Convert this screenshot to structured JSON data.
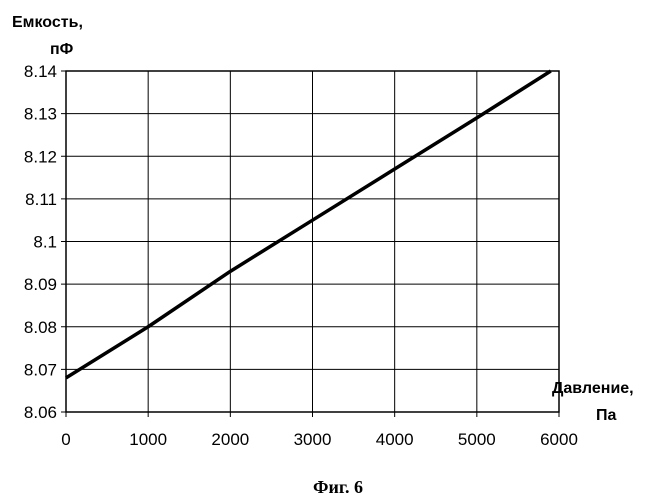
{
  "chart_data": {
    "type": "line",
    "ylabel_line1": "Емкость,",
    "ylabel_line2": "пФ",
    "xlabel_line1": "Давление,",
    "xlabel_line2": "Па",
    "xlim": [
      0,
      6000
    ],
    "ylim": [
      8.06,
      8.14
    ],
    "x_ticks": [
      "0",
      "1000",
      "2000",
      "3000",
      "4000",
      "5000",
      "6000"
    ],
    "y_ticks": [
      "8.06",
      "8.07",
      "8.08",
      "8.09",
      "8.1",
      "8.11",
      "8.12",
      "8.13",
      "8.14"
    ],
    "grid": true,
    "series": [
      {
        "x": [
          0,
          1000,
          2000,
          3000,
          4000,
          5000,
          5900
        ],
        "y": [
          8.068,
          8.08,
          8.093,
          8.105,
          8.117,
          8.129,
          8.14
        ]
      }
    ],
    "line_color": "#000000"
  },
  "caption": "Фиг. 6"
}
